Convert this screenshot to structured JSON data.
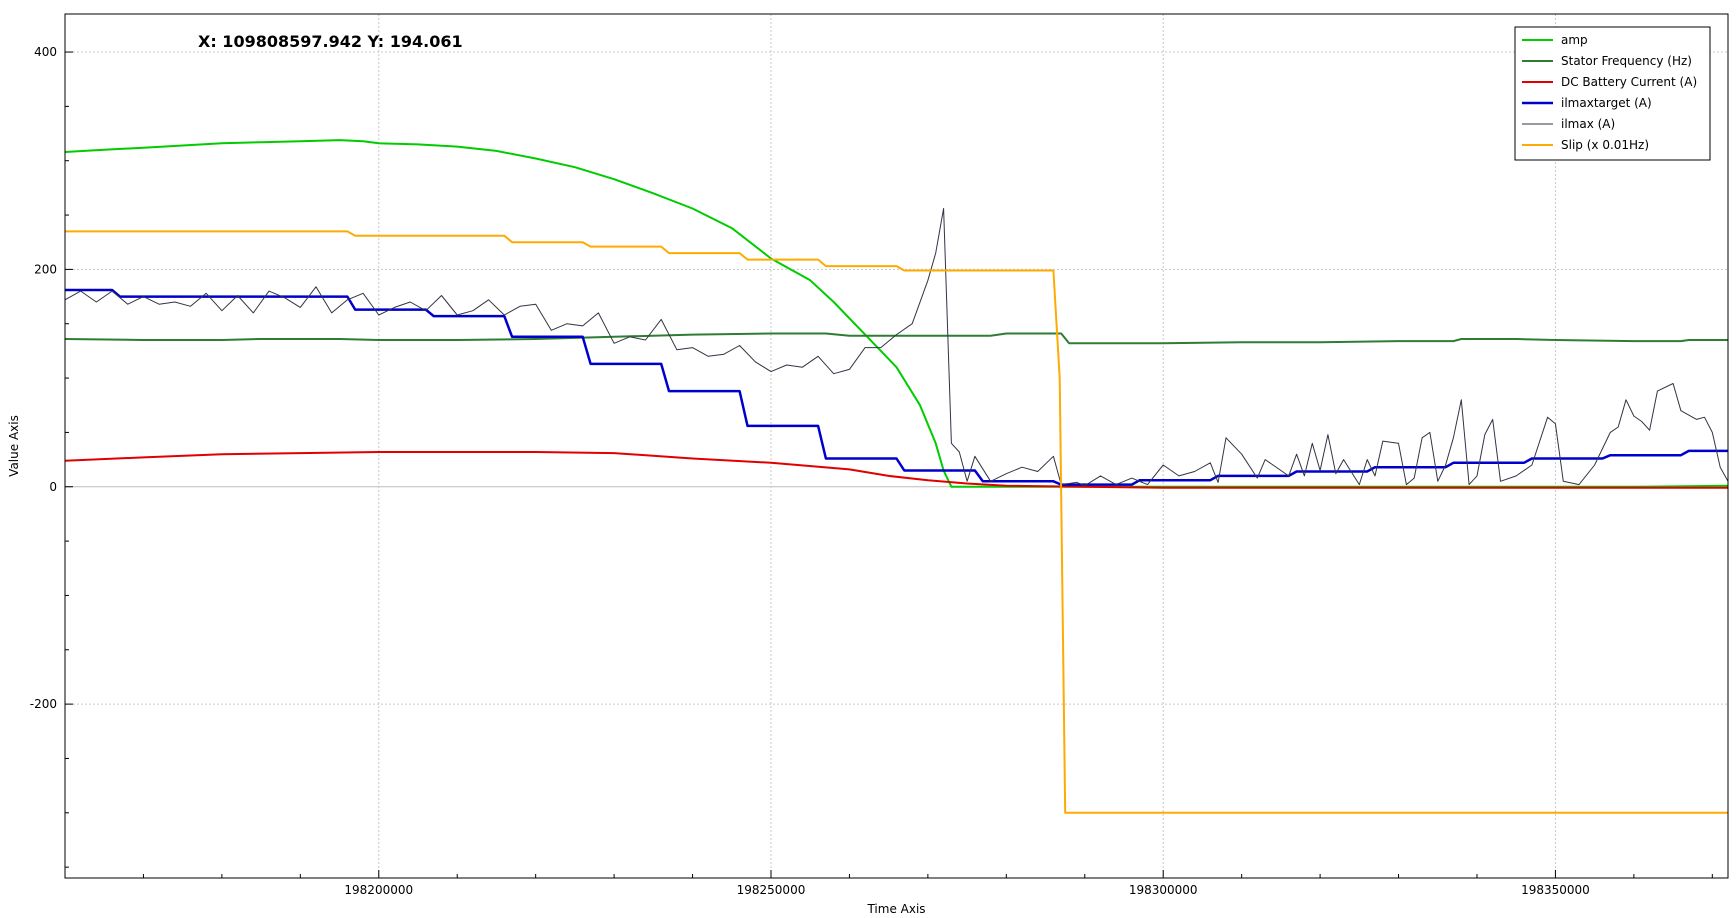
{
  "readout": "X: 109808597.942 Y: 194.061",
  "chart_data": {
    "type": "line",
    "xlabel": "Time Axis",
    "ylabel": "Value Axis",
    "xlim": [
      198160000,
      198372000
    ],
    "ylim": [
      -360,
      435
    ],
    "xticks": [
      198200000,
      198250000,
      198300000,
      198350000
    ],
    "yticks": [
      -200,
      0,
      200,
      400
    ],
    "grid": true,
    "legend_position": "top-right",
    "series": [
      {
        "name": "amp",
        "color": "#00cc00",
        "width": 2,
        "points": [
          [
            198160000,
            308
          ],
          [
            198165000,
            310
          ],
          [
            198170000,
            312
          ],
          [
            198175000,
            314
          ],
          [
            198180000,
            316
          ],
          [
            198185000,
            317
          ],
          [
            198190000,
            318
          ],
          [
            198195000,
            319
          ],
          [
            198198000,
            318
          ],
          [
            198200000,
            316
          ],
          [
            198205000,
            315
          ],
          [
            198210000,
            313
          ],
          [
            198215000,
            309
          ],
          [
            198220000,
            302
          ],
          [
            198225000,
            294
          ],
          [
            198230000,
            283
          ],
          [
            198235000,
            270
          ],
          [
            198240000,
            256
          ],
          [
            198245000,
            238
          ],
          [
            198250000,
            210
          ],
          [
            198255000,
            190
          ],
          [
            198258000,
            170
          ],
          [
            198262000,
            140
          ],
          [
            198266000,
            110
          ],
          [
            198269000,
            75
          ],
          [
            198271000,
            40
          ],
          [
            198272000,
            15
          ],
          [
            198273000,
            0
          ],
          [
            198285000,
            0
          ],
          [
            198300000,
            0
          ],
          [
            198320000,
            0
          ],
          [
            198340000,
            0
          ],
          [
            198360000,
            0
          ],
          [
            198372000,
            1
          ]
        ]
      },
      {
        "name": "Stator Frequency (Hz)",
        "color": "#2e7d32",
        "width": 2,
        "points": [
          [
            198160000,
            136
          ],
          [
            198170000,
            135
          ],
          [
            198180000,
            135
          ],
          [
            198185000,
            136
          ],
          [
            198195000,
            136
          ],
          [
            198200000,
            135
          ],
          [
            198210000,
            135
          ],
          [
            198220000,
            136
          ],
          [
            198225000,
            137
          ],
          [
            198230000,
            138
          ],
          [
            198240000,
            140
          ],
          [
            198250000,
            141
          ],
          [
            198257000,
            141
          ],
          [
            198260000,
            139
          ],
          [
            198270000,
            139
          ],
          [
            198278000,
            139
          ],
          [
            198280000,
            141
          ],
          [
            198287000,
            141
          ],
          [
            198288000,
            132
          ],
          [
            198300000,
            132
          ],
          [
            198310000,
            133
          ],
          [
            198320000,
            133
          ],
          [
            198330000,
            134
          ],
          [
            198337000,
            134
          ],
          [
            198338000,
            136
          ],
          [
            198345000,
            136
          ],
          [
            198350000,
            135
          ],
          [
            198360000,
            134
          ],
          [
            198366000,
            134
          ],
          [
            198367000,
            135
          ],
          [
            198372000,
            135
          ]
        ]
      },
      {
        "name": "DC Battery Current (A)",
        "color": "#e00000",
        "width": 2,
        "points": [
          [
            198160000,
            24
          ],
          [
            198170000,
            27
          ],
          [
            198180000,
            30
          ],
          [
            198190000,
            31
          ],
          [
            198200000,
            32
          ],
          [
            198210000,
            32
          ],
          [
            198220000,
            32
          ],
          [
            198230000,
            31
          ],
          [
            198240000,
            26
          ],
          [
            198250000,
            22
          ],
          [
            198260000,
            16
          ],
          [
            198265000,
            10
          ],
          [
            198270000,
            6
          ],
          [
            198275000,
            3
          ],
          [
            198280000,
            1
          ],
          [
            198290000,
            0
          ],
          [
            198300000,
            -1
          ],
          [
            198320000,
            -1
          ],
          [
            198340000,
            -1
          ],
          [
            198360000,
            -1
          ],
          [
            198372000,
            -1
          ]
        ]
      },
      {
        "name": "ilmaxtarget (A)",
        "color": "#0000cc",
        "width": 2.5,
        "points": [
          [
            198160000,
            181
          ],
          [
            198166000,
            181
          ],
          [
            198167000,
            175
          ],
          [
            198196000,
            175
          ],
          [
            198197000,
            163
          ],
          [
            198206000,
            163
          ],
          [
            198207000,
            157
          ],
          [
            198216000,
            157
          ],
          [
            198217000,
            138
          ],
          [
            198226000,
            138
          ],
          [
            198227000,
            113
          ],
          [
            198236000,
            113
          ],
          [
            198237000,
            88
          ],
          [
            198246000,
            88
          ],
          [
            198247000,
            56
          ],
          [
            198256000,
            56
          ],
          [
            198257000,
            26
          ],
          [
            198266000,
            26
          ],
          [
            198267000,
            15
          ],
          [
            198276000,
            15
          ],
          [
            198277000,
            5
          ],
          [
            198286000,
            5
          ],
          [
            198287000,
            2
          ],
          [
            198296000,
            2
          ],
          [
            198297000,
            6
          ],
          [
            198306000,
            6
          ],
          [
            198307000,
            10
          ],
          [
            198316000,
            10
          ],
          [
            198317000,
            14
          ],
          [
            198326000,
            14
          ],
          [
            198327000,
            18
          ],
          [
            198336000,
            18
          ],
          [
            198337000,
            22
          ],
          [
            198346000,
            22
          ],
          [
            198347000,
            26
          ],
          [
            198356000,
            26
          ],
          [
            198357000,
            29
          ],
          [
            198366000,
            29
          ],
          [
            198367000,
            33
          ],
          [
            198372000,
            33
          ]
        ]
      },
      {
        "name": "ilmax (A)",
        "color": "#333344",
        "width": 1,
        "points": [
          [
            198160000,
            172
          ],
          [
            198162000,
            180
          ],
          [
            198164000,
            170
          ],
          [
            198166000,
            180
          ],
          [
            198168000,
            168
          ],
          [
            198170000,
            175
          ],
          [
            198172000,
            168
          ],
          [
            198174000,
            170
          ],
          [
            198176000,
            166
          ],
          [
            198178000,
            178
          ],
          [
            198180000,
            162
          ],
          [
            198182000,
            176
          ],
          [
            198184000,
            160
          ],
          [
            198186000,
            180
          ],
          [
            198188000,
            174
          ],
          [
            198190000,
            165
          ],
          [
            198192000,
            184
          ],
          [
            198194000,
            160
          ],
          [
            198196000,
            172
          ],
          [
            198198000,
            178
          ],
          [
            198200000,
            158
          ],
          [
            198202000,
            165
          ],
          [
            198204000,
            170
          ],
          [
            198206000,
            162
          ],
          [
            198208000,
            176
          ],
          [
            198210000,
            158
          ],
          [
            198212000,
            162
          ],
          [
            198214000,
            172
          ],
          [
            198216000,
            158
          ],
          [
            198218000,
            166
          ],
          [
            198220000,
            168
          ],
          [
            198222000,
            144
          ],
          [
            198224000,
            150
          ],
          [
            198226000,
            148
          ],
          [
            198228000,
            160
          ],
          [
            198230000,
            132
          ],
          [
            198232000,
            138
          ],
          [
            198234000,
            135
          ],
          [
            198236000,
            154
          ],
          [
            198238000,
            126
          ],
          [
            198240000,
            128
          ],
          [
            198242000,
            120
          ],
          [
            198244000,
            122
          ],
          [
            198246000,
            130
          ],
          [
            198248000,
            115
          ],
          [
            198250000,
            106
          ],
          [
            198252000,
            112
          ],
          [
            198254000,
            110
          ],
          [
            198256000,
            120
          ],
          [
            198258000,
            104
          ],
          [
            198260000,
            108
          ],
          [
            198262000,
            128
          ],
          [
            198264000,
            128
          ],
          [
            198266000,
            140
          ],
          [
            198268000,
            150
          ],
          [
            198270000,
            190
          ],
          [
            198271000,
            215
          ],
          [
            198272000,
            256
          ],
          [
            198273000,
            40
          ],
          [
            198274000,
            32
          ],
          [
            198275000,
            5
          ],
          [
            198276000,
            28
          ],
          [
            198278000,
            5
          ],
          [
            198280000,
            12
          ],
          [
            198282000,
            18
          ],
          [
            198284000,
            14
          ],
          [
            198286000,
            28
          ],
          [
            198287000,
            2
          ],
          [
            198289000,
            4
          ],
          [
            198290000,
            1
          ],
          [
            198292000,
            10
          ],
          [
            198294000,
            2
          ],
          [
            198296000,
            8
          ],
          [
            198298000,
            2
          ],
          [
            198300000,
            20
          ],
          [
            198302000,
            10
          ],
          [
            198304000,
            14
          ],
          [
            198306000,
            22
          ],
          [
            198307000,
            4
          ],
          [
            198308000,
            45
          ],
          [
            198310000,
            30
          ],
          [
            198312000,
            8
          ],
          [
            198313000,
            25
          ],
          [
            198314000,
            20
          ],
          [
            198316000,
            10
          ],
          [
            198317000,
            30
          ],
          [
            198318000,
            10
          ],
          [
            198319000,
            40
          ],
          [
            198320000,
            15
          ],
          [
            198321000,
            48
          ],
          [
            198322000,
            12
          ],
          [
            198323000,
            25
          ],
          [
            198325000,
            2
          ],
          [
            198326000,
            25
          ],
          [
            198327000,
            10
          ],
          [
            198328000,
            42
          ],
          [
            198330000,
            40
          ],
          [
            198331000,
            2
          ],
          [
            198332000,
            8
          ],
          [
            198333000,
            45
          ],
          [
            198334000,
            50
          ],
          [
            198335000,
            5
          ],
          [
            198336000,
            20
          ],
          [
            198337000,
            45
          ],
          [
            198338000,
            80
          ],
          [
            198339000,
            2
          ],
          [
            198340000,
            10
          ],
          [
            198341000,
            48
          ],
          [
            198342000,
            62
          ],
          [
            198343000,
            5
          ],
          [
            198345000,
            10
          ],
          [
            198347000,
            20
          ],
          [
            198349000,
            64
          ],
          [
            198350000,
            58
          ],
          [
            198351000,
            5
          ],
          [
            198353000,
            2
          ],
          [
            198355000,
            20
          ],
          [
            198357000,
            50
          ],
          [
            198358000,
            55
          ],
          [
            198359000,
            80
          ],
          [
            198360000,
            65
          ],
          [
            198361000,
            60
          ],
          [
            198362000,
            52
          ],
          [
            198363000,
            88
          ],
          [
            198365000,
            95
          ],
          [
            198366000,
            70
          ],
          [
            198368000,
            62
          ],
          [
            198369000,
            64
          ],
          [
            198370000,
            50
          ],
          [
            198371000,
            18
          ],
          [
            198372000,
            5
          ]
        ]
      },
      {
        "name": "Slip (x 0.01Hz)",
        "color": "#ffaa00",
        "width": 2,
        "points": [
          [
            198160000,
            235
          ],
          [
            198196000,
            235
          ],
          [
            198197000,
            231
          ],
          [
            198216000,
            231
          ],
          [
            198217000,
            225
          ],
          [
            198226000,
            225
          ],
          [
            198227000,
            221
          ],
          [
            198236000,
            221
          ],
          [
            198237000,
            215
          ],
          [
            198246000,
            215
          ],
          [
            198247000,
            209
          ],
          [
            198256000,
            209
          ],
          [
            198257000,
            203
          ],
          [
            198266000,
            203
          ],
          [
            198267000,
            199
          ],
          [
            198286000,
            199
          ],
          [
            198286800,
            100
          ],
          [
            198287500,
            -300
          ],
          [
            198372000,
            -300
          ]
        ]
      }
    ]
  }
}
